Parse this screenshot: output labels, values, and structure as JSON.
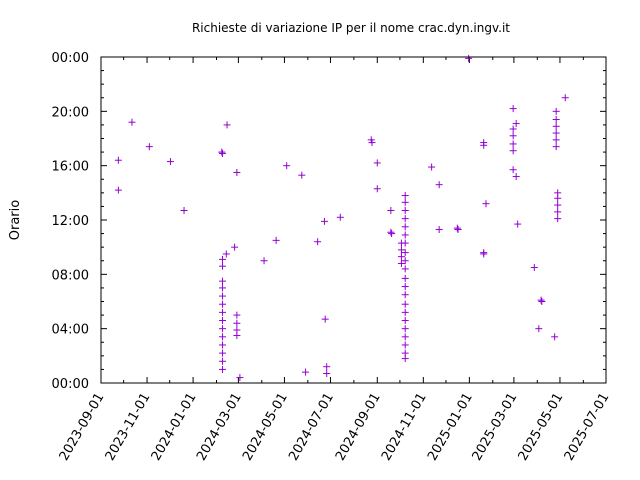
{
  "chart_data": {
    "type": "scatter",
    "title": "Richieste di variazione IP per il nome crac.dyn.ingv.it",
    "xlabel": "",
    "ylabel": "Orario",
    "x_type": "date",
    "xlim": [
      "2023-09-01",
      "2025-07-01"
    ],
    "ylim_hours": [
      0,
      24
    ],
    "x_ticks": [
      "2023-09-01",
      "2023-11-01",
      "2024-01-01",
      "2024-03-01",
      "2024-05-01",
      "2024-07-01",
      "2024-09-01",
      "2024-11-01",
      "2025-01-01",
      "2025-03-01",
      "2025-05-01",
      "2025-07-01"
    ],
    "y_ticks": [
      {
        "value": 0,
        "label": "00:00"
      },
      {
        "value": 4,
        "label": "04:00"
      },
      {
        "value": 8,
        "label": "08:00"
      },
      {
        "value": 12,
        "label": "12:00"
      },
      {
        "value": 16,
        "label": "16:00"
      },
      {
        "value": 20,
        "label": "20:00"
      },
      {
        "value": 24,
        "label": "00:00"
      }
    ],
    "grid": false,
    "marker": "+",
    "color": "#9400d3",
    "series": [
      {
        "points": [
          [
            "2023-09-24",
            16.4
          ],
          [
            "2023-09-24",
            14.2
          ],
          [
            "2023-10-12",
            19.2
          ],
          [
            "2023-11-04",
            17.4
          ],
          [
            "2023-12-02",
            16.3
          ],
          [
            "2023-12-20",
            12.7
          ],
          [
            "2024-02-08",
            17.0
          ],
          [
            "2024-02-09",
            16.9
          ],
          [
            "2024-02-09",
            9.1
          ],
          [
            "2024-02-09",
            8.6
          ],
          [
            "2024-02-09",
            7.5
          ],
          [
            "2024-02-09",
            7.0
          ],
          [
            "2024-02-09",
            6.4
          ],
          [
            "2024-02-09",
            5.8
          ],
          [
            "2024-02-09",
            5.2
          ],
          [
            "2024-02-09",
            4.6
          ],
          [
            "2024-02-09",
            4.0
          ],
          [
            "2024-02-09",
            3.4
          ],
          [
            "2024-02-09",
            2.8
          ],
          [
            "2024-02-09",
            2.2
          ],
          [
            "2024-02-09",
            1.6
          ],
          [
            "2024-02-09",
            1.0
          ],
          [
            "2024-02-14",
            9.5
          ],
          [
            "2024-02-15",
            19.0
          ],
          [
            "2024-02-25",
            10.0
          ],
          [
            "2024-02-28",
            15.5
          ],
          [
            "2024-02-28",
            5.0
          ],
          [
            "2024-02-28",
            4.4
          ],
          [
            "2024-02-28",
            3.9
          ],
          [
            "2024-02-28",
            3.5
          ],
          [
            "2024-03-03",
            0.4
          ],
          [
            "2024-04-04",
            9.0
          ],
          [
            "2024-04-20",
            10.5
          ],
          [
            "2024-05-04",
            16.0
          ],
          [
            "2024-05-24",
            15.3
          ],
          [
            "2024-05-29",
            0.8
          ],
          [
            "2024-06-14",
            10.4
          ],
          [
            "2024-06-23",
            11.9
          ],
          [
            "2024-06-24",
            4.7
          ],
          [
            "2024-06-26",
            1.2
          ],
          [
            "2024-06-26",
            0.7
          ],
          [
            "2024-07-14",
            12.2
          ],
          [
            "2024-08-24",
            17.9
          ],
          [
            "2024-08-25",
            17.7
          ],
          [
            "2024-09-01",
            16.2
          ],
          [
            "2024-09-01",
            14.3
          ],
          [
            "2024-09-19",
            12.7
          ],
          [
            "2024-09-19",
            11.1
          ],
          [
            "2024-09-20",
            11.0
          ],
          [
            "2024-10-03",
            10.3
          ],
          [
            "2024-10-03",
            9.8
          ],
          [
            "2024-10-03",
            9.3
          ],
          [
            "2024-10-03",
            8.8
          ],
          [
            "2024-10-08",
            13.8
          ],
          [
            "2024-10-08",
            13.3
          ],
          [
            "2024-10-08",
            12.7
          ],
          [
            "2024-10-08",
            12.1
          ],
          [
            "2024-10-08",
            11.5
          ],
          [
            "2024-10-08",
            10.9
          ],
          [
            "2024-10-08",
            10.3
          ],
          [
            "2024-10-08",
            9.6
          ],
          [
            "2024-10-08",
            9.0
          ],
          [
            "2024-10-08",
            8.4
          ],
          [
            "2024-10-08",
            7.7
          ],
          [
            "2024-10-08",
            7.1
          ],
          [
            "2024-10-08",
            6.5
          ],
          [
            "2024-10-08",
            5.8
          ],
          [
            "2024-10-08",
            5.2
          ],
          [
            "2024-10-08",
            4.6
          ],
          [
            "2024-10-08",
            4.0
          ],
          [
            "2024-10-08",
            3.4
          ],
          [
            "2024-10-08",
            2.8
          ],
          [
            "2024-10-08",
            2.2
          ],
          [
            "2024-10-08",
            1.8
          ],
          [
            "2024-11-12",
            15.9
          ],
          [
            "2024-11-22",
            14.6
          ],
          [
            "2024-11-22",
            11.3
          ],
          [
            "2024-12-16",
            11.4
          ],
          [
            "2024-12-17",
            11.3
          ],
          [
            "2024-12-31",
            23.9
          ],
          [
            "2025-01-20",
            17.7
          ],
          [
            "2025-01-20",
            17.5
          ],
          [
            "2025-01-20",
            9.6
          ],
          [
            "2025-01-20",
            9.5
          ],
          [
            "2025-01-23",
            13.2
          ],
          [
            "2025-02-28",
            20.2
          ],
          [
            "2025-02-28",
            18.7
          ],
          [
            "2025-02-28",
            18.2
          ],
          [
            "2025-02-28",
            17.6
          ],
          [
            "2025-02-28",
            17.1
          ],
          [
            "2025-02-28",
            15.7
          ],
          [
            "2025-03-04",
            19.1
          ],
          [
            "2025-03-04",
            15.2
          ],
          [
            "2025-03-06",
            11.7
          ],
          [
            "2025-03-28",
            8.5
          ],
          [
            "2025-04-03",
            4.0
          ],
          [
            "2025-04-06",
            6.1
          ],
          [
            "2025-04-07",
            6.0
          ],
          [
            "2025-04-24",
            3.4
          ],
          [
            "2025-04-26",
            20.0
          ],
          [
            "2025-04-26",
            19.4
          ],
          [
            "2025-04-26",
            18.9
          ],
          [
            "2025-04-26",
            18.4
          ],
          [
            "2025-04-26",
            17.9
          ],
          [
            "2025-04-26",
            17.4
          ],
          [
            "2025-04-28",
            14.0
          ],
          [
            "2025-04-28",
            13.6
          ],
          [
            "2025-04-28",
            13.1
          ],
          [
            "2025-04-28",
            12.6
          ],
          [
            "2025-04-28",
            12.1
          ],
          [
            "2025-05-08",
            21.0
          ]
        ]
      }
    ]
  }
}
